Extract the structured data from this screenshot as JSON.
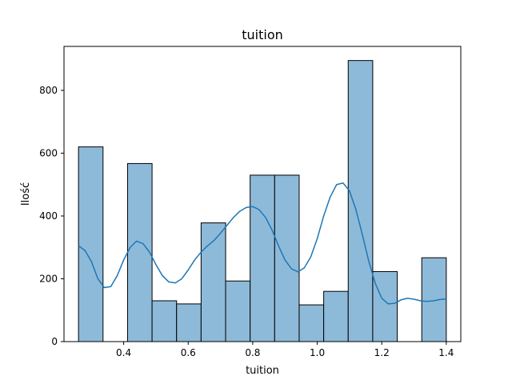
{
  "chart_data": {
    "type": "bar",
    "title": "tuition",
    "xlabel": "tuition",
    "ylabel": "Ilość",
    "xlim": [
      0.215,
      1.445
    ],
    "ylim": [
      0,
      940
    ],
    "xticks": [
      0.4,
      0.6,
      0.8,
      1.0,
      1.2,
      1.4
    ],
    "xtick_labels": [
      "0.4",
      "0.6",
      "0.8",
      "1.0",
      "1.2",
      "1.4"
    ],
    "yticks": [
      0,
      200,
      400,
      600,
      800
    ],
    "ytick_labels": [
      "0",
      "200",
      "400",
      "600",
      "800"
    ],
    "bin_edges": [
      0.26,
      0.336,
      0.412,
      0.488,
      0.564,
      0.64,
      0.716,
      0.792,
      0.868,
      0.944,
      1.02,
      1.096,
      1.172,
      1.248,
      1.324,
      1.4
    ],
    "values": [
      620,
      0,
      567,
      130,
      120,
      378,
      193,
      530,
      530,
      117,
      160,
      895,
      223,
      0,
      267
    ],
    "kde": {
      "x": [
        0.26,
        0.28,
        0.3,
        0.32,
        0.34,
        0.36,
        0.38,
        0.4,
        0.42,
        0.44,
        0.46,
        0.48,
        0.5,
        0.52,
        0.54,
        0.56,
        0.58,
        0.6,
        0.62,
        0.64,
        0.66,
        0.68,
        0.7,
        0.72,
        0.74,
        0.76,
        0.78,
        0.8,
        0.82,
        0.84,
        0.86,
        0.88,
        0.9,
        0.92,
        0.94,
        0.96,
        0.98,
        1.0,
        1.02,
        1.04,
        1.06,
        1.08,
        1.1,
        1.12,
        1.14,
        1.16,
        1.18,
        1.2,
        1.22,
        1.24,
        1.26,
        1.28,
        1.3,
        1.32,
        1.34,
        1.36,
        1.38,
        1.4
      ],
      "y": [
        305,
        290,
        255,
        200,
        172,
        175,
        210,
        260,
        300,
        320,
        312,
        285,
        245,
        210,
        190,
        187,
        200,
        228,
        260,
        285,
        305,
        322,
        345,
        370,
        395,
        415,
        427,
        430,
        420,
        395,
        355,
        305,
        260,
        232,
        222,
        235,
        270,
        328,
        400,
        460,
        500,
        505,
        480,
        420,
        340,
        255,
        185,
        138,
        120,
        122,
        133,
        138,
        135,
        130,
        128,
        130,
        134,
        136
      ]
    },
    "bar_color": "#8ebad9",
    "bar_edge_color": "#000000",
    "line_color": "#1f77b4",
    "grid": false,
    "legend": "none"
  }
}
